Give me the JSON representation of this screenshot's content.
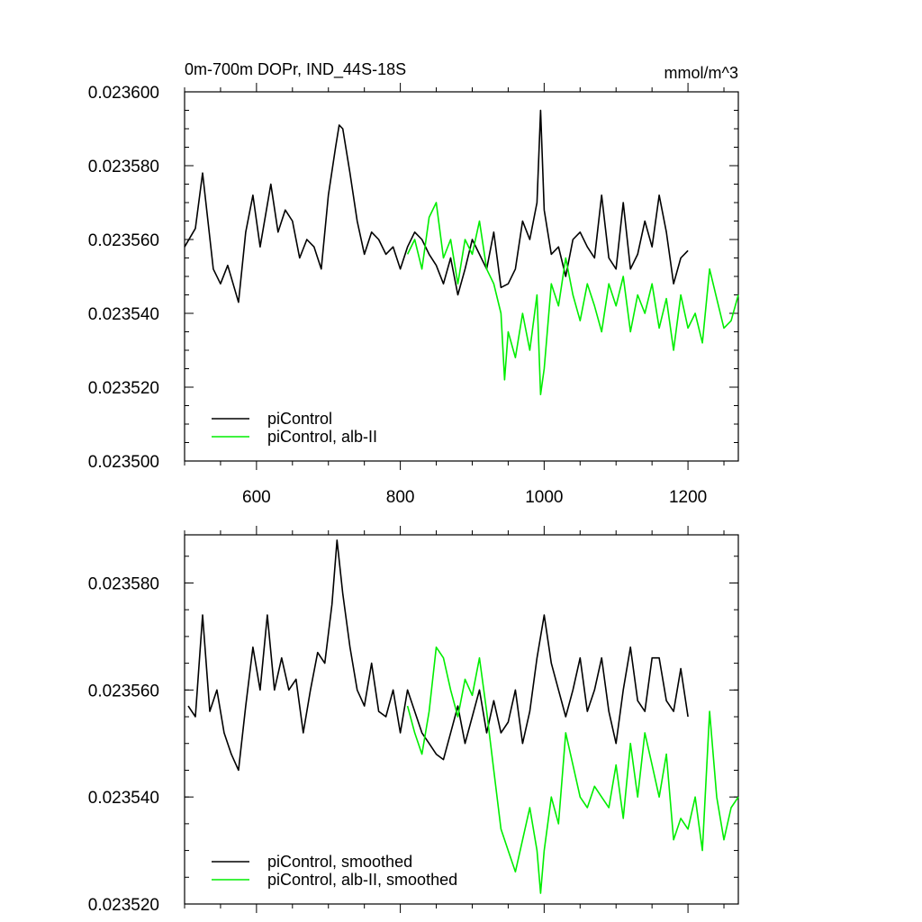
{
  "chart_data": [
    {
      "type": "line",
      "title": "0m-700m DOPr, IND_44S-18S",
      "units": "mmol/m^3",
      "xlim": [
        500,
        1270
      ],
      "ylim": [
        0.0235,
        0.0236
      ],
      "x_ticks": [
        600,
        800,
        1000,
        1200
      ],
      "x_tick_labels": [
        "600",
        "800",
        "1000",
        "1200"
      ],
      "y_ticks": [
        0.0235,
        0.02352,
        0.02354,
        0.02356,
        0.02358,
        0.0236
      ],
      "y_tick_labels": [
        "0.023500",
        "0.023520",
        "0.023540",
        "0.023560",
        "0.023580",
        "0.023600"
      ],
      "grid": false,
      "legend_position": "bottom-left",
      "series": [
        {
          "name": "piControl",
          "color": "#000000",
          "x": [
            500,
            515,
            525,
            540,
            550,
            560,
            575,
            585,
            595,
            605,
            620,
            630,
            640,
            650,
            660,
            670,
            680,
            690,
            700,
            710,
            715,
            720,
            730,
            740,
            750,
            760,
            770,
            780,
            790,
            800,
            810,
            820,
            830,
            840,
            850,
            860,
            870,
            880,
            890,
            900,
            910,
            920,
            930,
            940,
            950,
            960,
            970,
            980,
            990,
            995,
            1000,
            1010,
            1020,
            1030,
            1040,
            1050,
            1060,
            1070,
            1080,
            1090,
            1100,
            1110,
            1120,
            1130,
            1140,
            1150,
            1160,
            1170,
            1180,
            1190,
            1200
          ],
          "y": [
            0.023558,
            0.023563,
            0.023578,
            0.023552,
            0.023548,
            0.023553,
            0.023543,
            0.023562,
            0.023572,
            0.023558,
            0.023575,
            0.023562,
            0.023568,
            0.023565,
            0.023555,
            0.02356,
            0.023558,
            0.023552,
            0.023572,
            0.023585,
            0.023591,
            0.02359,
            0.023578,
            0.023565,
            0.023556,
            0.023562,
            0.02356,
            0.023556,
            0.023558,
            0.023552,
            0.023558,
            0.023562,
            0.02356,
            0.023556,
            0.023553,
            0.023548,
            0.023555,
            0.023545,
            0.023552,
            0.02356,
            0.023556,
            0.023552,
            0.023562,
            0.023547,
            0.023548,
            0.023552,
            0.023565,
            0.02356,
            0.02357,
            0.023595,
            0.023568,
            0.023556,
            0.023558,
            0.02355,
            0.02356,
            0.023562,
            0.023558,
            0.023555,
            0.023572,
            0.023555,
            0.023552,
            0.02357,
            0.023552,
            0.023556,
            0.023565,
            0.023558,
            0.023572,
            0.023562,
            0.023548,
            0.023555,
            0.023557
          ]
        },
        {
          "name": "piControl, alb-II",
          "color": "#00ee00",
          "x": [
            810,
            820,
            830,
            840,
            850,
            860,
            870,
            880,
            890,
            900,
            910,
            920,
            930,
            940,
            945,
            950,
            960,
            970,
            980,
            990,
            995,
            1000,
            1010,
            1020,
            1030,
            1040,
            1050,
            1060,
            1070,
            1080,
            1090,
            1100,
            1110,
            1120,
            1130,
            1140,
            1150,
            1160,
            1170,
            1180,
            1190,
            1200,
            1210,
            1220,
            1230,
            1240,
            1250,
            1260,
            1270
          ],
          "y": [
            0.023556,
            0.02356,
            0.023552,
            0.023566,
            0.02357,
            0.023555,
            0.02356,
            0.023548,
            0.02356,
            0.023556,
            0.023565,
            0.023552,
            0.023548,
            0.02354,
            0.023522,
            0.023535,
            0.023528,
            0.02354,
            0.02353,
            0.023545,
            0.023518,
            0.023525,
            0.023548,
            0.023542,
            0.023555,
            0.023545,
            0.023538,
            0.023548,
            0.023542,
            0.023535,
            0.023548,
            0.023542,
            0.02355,
            0.023535,
            0.023545,
            0.02354,
            0.023548,
            0.023536,
            0.023544,
            0.02353,
            0.023545,
            0.023536,
            0.02354,
            0.023532,
            0.023552,
            0.023544,
            0.023536,
            0.023538,
            0.023545
          ]
        }
      ],
      "legend": [
        "piControl",
        "piControl, alb-II"
      ]
    },
    {
      "type": "line",
      "title": "",
      "xlim": [
        500,
        1270
      ],
      "ylim": [
        0.02352,
        0.023589
      ],
      "x_ticks": [
        600,
        800,
        1000,
        1200
      ],
      "x_tick_labels": [],
      "y_ticks": [
        0.02352,
        0.02354,
        0.02356,
        0.02358
      ],
      "y_tick_labels": [
        "0.023520",
        "0.023540",
        "0.023560",
        "0.023580"
      ],
      "grid": false,
      "legend_position": "bottom-left",
      "series": [
        {
          "name": "piControl, smoothed",
          "color": "#000000",
          "x": [
            505,
            515,
            525,
            535,
            545,
            555,
            565,
            575,
            585,
            595,
            605,
            615,
            625,
            635,
            645,
            655,
            665,
            675,
            685,
            695,
            705,
            712,
            720,
            730,
            740,
            750,
            760,
            770,
            780,
            790,
            800,
            810,
            820,
            830,
            840,
            850,
            860,
            870,
            880,
            890,
            900,
            910,
            920,
            930,
            940,
            950,
            960,
            970,
            980,
            990,
            1000,
            1010,
            1020,
            1030,
            1040,
            1050,
            1060,
            1070,
            1080,
            1090,
            1100,
            1110,
            1120,
            1130,
            1140,
            1150,
            1160,
            1170,
            1180,
            1190,
            1200
          ],
          "y": [
            0.023557,
            0.023555,
            0.023574,
            0.023556,
            0.02356,
            0.023552,
            0.023548,
            0.023545,
            0.023557,
            0.023568,
            0.02356,
            0.023574,
            0.02356,
            0.023566,
            0.02356,
            0.023562,
            0.023552,
            0.02356,
            0.023567,
            0.023565,
            0.023576,
            0.023588,
            0.023578,
            0.023568,
            0.02356,
            0.023557,
            0.023565,
            0.023556,
            0.023555,
            0.02356,
            0.023552,
            0.02356,
            0.023556,
            0.023552,
            0.02355,
            0.023548,
            0.023547,
            0.023552,
            0.023557,
            0.02355,
            0.023555,
            0.02356,
            0.023552,
            0.023558,
            0.023552,
            0.023554,
            0.02356,
            0.02355,
            0.023556,
            0.023566,
            0.023574,
            0.023565,
            0.02356,
            0.023555,
            0.02356,
            0.023566,
            0.023556,
            0.02356,
            0.023566,
            0.023556,
            0.02355,
            0.02356,
            0.023568,
            0.023558,
            0.023556,
            0.023566,
            0.023566,
            0.023558,
            0.023556,
            0.023564,
            0.023555
          ]
        },
        {
          "name": "piControl, alb-II, smoothed",
          "color": "#00ee00",
          "x": [
            810,
            820,
            830,
            840,
            850,
            860,
            870,
            880,
            890,
            900,
            910,
            920,
            930,
            940,
            950,
            960,
            970,
            980,
            990,
            995,
            1000,
            1010,
            1020,
            1030,
            1040,
            1050,
            1060,
            1070,
            1080,
            1090,
            1100,
            1110,
            1120,
            1130,
            1140,
            1150,
            1160,
            1170,
            1180,
            1190,
            1200,
            1210,
            1220,
            1230,
            1240,
            1250,
            1260,
            1270
          ],
          "y": [
            0.023557,
            0.023552,
            0.023548,
            0.023556,
            0.023568,
            0.023566,
            0.02356,
            0.023555,
            0.023562,
            0.023559,
            0.023566,
            0.023556,
            0.023545,
            0.023534,
            0.02353,
            0.023526,
            0.023532,
            0.023538,
            0.02353,
            0.023522,
            0.02353,
            0.02354,
            0.023535,
            0.023552,
            0.023546,
            0.02354,
            0.023538,
            0.023542,
            0.02354,
            0.023538,
            0.023546,
            0.023536,
            0.02355,
            0.02354,
            0.023552,
            0.023546,
            0.02354,
            0.023548,
            0.023532,
            0.023536,
            0.023534,
            0.02354,
            0.02353,
            0.023556,
            0.02354,
            0.023532,
            0.023538,
            0.02354
          ]
        }
      ],
      "legend": [
        "piControl, smoothed",
        "piControl, alb-II, smoothed"
      ]
    }
  ]
}
